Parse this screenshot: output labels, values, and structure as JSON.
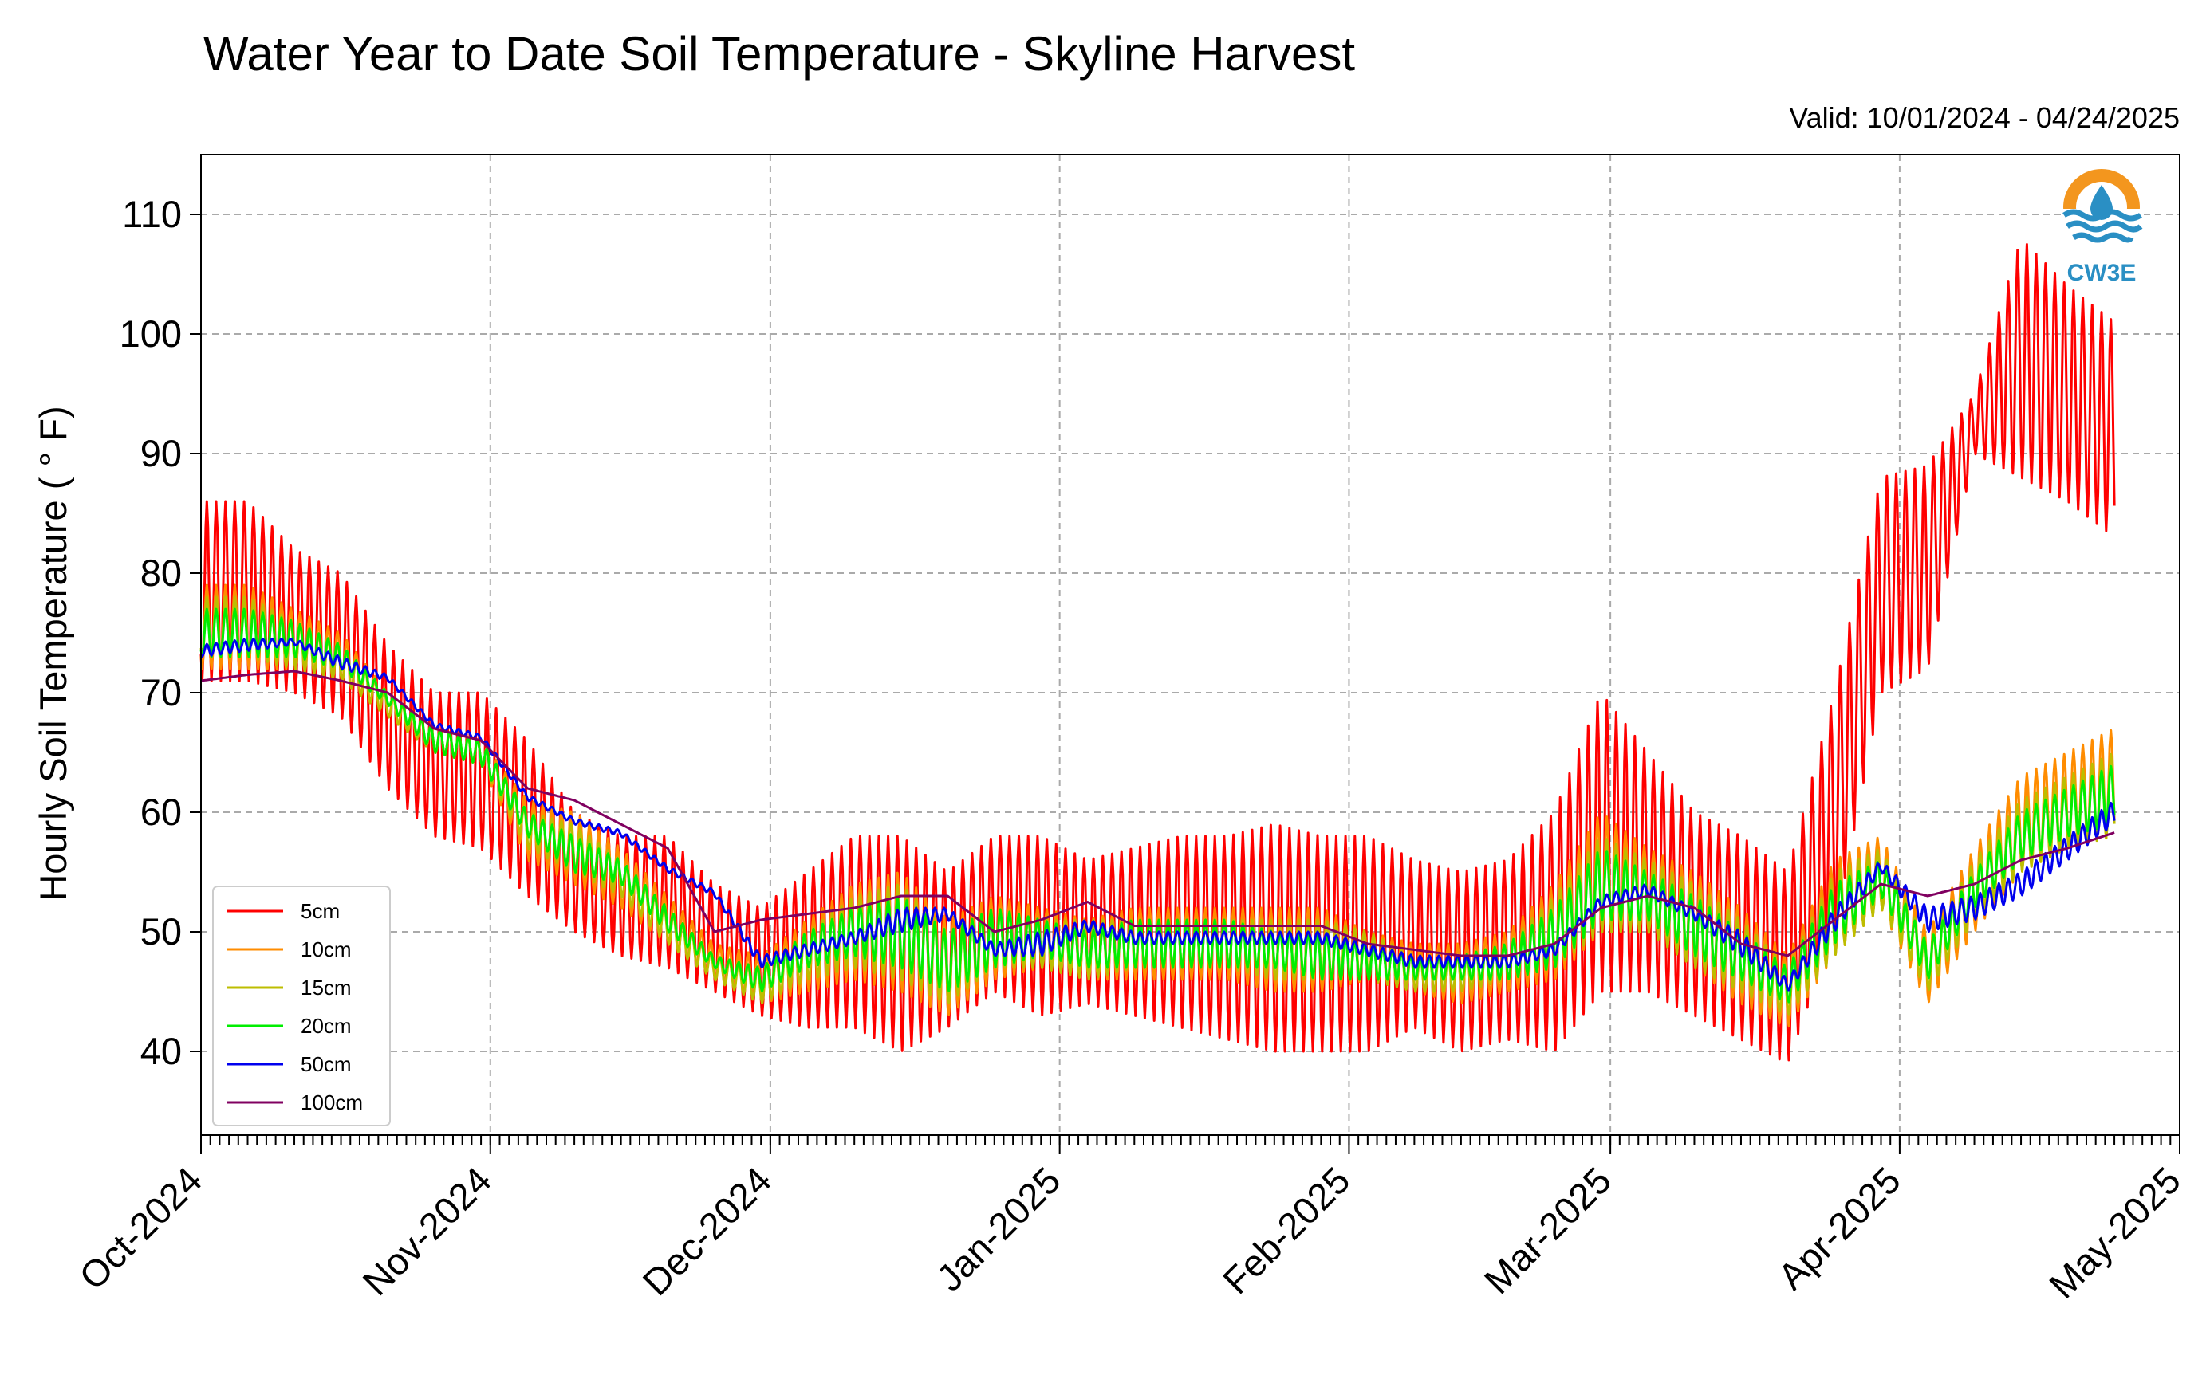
{
  "chart_data": {
    "type": "line",
    "title": "Water Year to Date Soil Temperature - Skyline Harvest",
    "subtitle": "Valid: 10/01/2024 - 04/24/2025",
    "xlabel": "",
    "ylabel": "Hourly Soil Temperature ( ° F)",
    "xlim": [
      "2024-10-01",
      "2025-05-01"
    ],
    "ylim": [
      33,
      115
    ],
    "x_ticks": [
      "Oct-2024",
      "Nov-2024",
      "Dec-2024",
      "Jan-2025",
      "Feb-2025",
      "Mar-2025",
      "Apr-2025",
      "May-2025"
    ],
    "x_tick_dates": [
      "2024-10-01",
      "2024-11-01",
      "2024-12-01",
      "2025-01-01",
      "2025-02-01",
      "2025-03-01",
      "2025-04-01",
      "2025-05-01"
    ],
    "y_ticks": [
      40,
      50,
      60,
      70,
      80,
      90,
      100,
      110
    ],
    "grid": true,
    "legend_position": "bottom-left",
    "logo_text": "CW3E",
    "series": [
      {
        "name": "5cm",
        "color": "#ff0000",
        "x": [
          "2024-10-01",
          "2024-10-06",
          "2024-10-11",
          "2024-10-16",
          "2024-10-21",
          "2024-10-26",
          "2024-10-31",
          "2024-11-05",
          "2024-11-10",
          "2024-11-15",
          "2024-11-20",
          "2024-11-25",
          "2024-11-30",
          "2024-12-05",
          "2024-12-10",
          "2024-12-15",
          "2024-12-20",
          "2024-12-25",
          "2024-12-30",
          "2025-01-04",
          "2025-01-09",
          "2025-01-14",
          "2025-01-19",
          "2025-01-24",
          "2025-01-29",
          "2025-02-03",
          "2025-02-08",
          "2025-02-13",
          "2025-02-18",
          "2025-02-23",
          "2025-02-28",
          "2025-03-05",
          "2025-03-10",
          "2025-03-15",
          "2025-03-20",
          "2025-03-25",
          "2025-03-30",
          "2025-04-04",
          "2025-04-09",
          "2025-04-14",
          "2025-04-19",
          "2025-04-24"
        ],
        "low": [
          71,
          71,
          70,
          68,
          62,
          58,
          57,
          53,
          50,
          48,
          47,
          45,
          43,
          42,
          42,
          40,
          42,
          45,
          43,
          44,
          43,
          42,
          41,
          40,
          40,
          40,
          42,
          40,
          41,
          40,
          45,
          45,
          43,
          41,
          39,
          50,
          70,
          72,
          90,
          88,
          86,
          83
        ],
        "high": [
          86,
          86,
          82,
          80,
          74,
          70,
          70,
          66,
          60,
          58,
          58,
          54,
          52,
          55,
          58,
          58,
          55,
          58,
          58,
          56,
          57,
          58,
          58,
          59,
          58,
          58,
          56,
          55,
          56,
          60,
          70,
          65,
          60,
          58,
          55,
          70,
          88,
          89,
          95,
          108,
          104,
          101
        ]
      },
      {
        "name": "10cm",
        "color": "#ff8c00",
        "x": [
          "2024-10-01",
          "2024-10-06",
          "2024-10-11",
          "2024-10-16",
          "2024-10-21",
          "2024-10-26",
          "2024-10-31",
          "2024-11-05",
          "2024-11-10",
          "2024-11-15",
          "2024-11-20",
          "2024-11-25",
          "2024-11-30",
          "2024-12-05",
          "2024-12-10",
          "2024-12-15",
          "2024-12-20",
          "2024-12-25",
          "2024-12-30",
          "2025-01-04",
          "2025-01-09",
          "2025-01-14",
          "2025-01-19",
          "2025-01-24",
          "2025-01-29",
          "2025-02-03",
          "2025-02-08",
          "2025-02-13",
          "2025-02-18",
          "2025-02-23",
          "2025-02-28",
          "2025-03-05",
          "2025-03-10",
          "2025-03-15",
          "2025-03-20",
          "2025-03-25",
          "2025-03-30",
          "2025-04-04",
          "2025-04-09",
          "2025-04-14",
          "2025-04-19",
          "2025-04-24"
        ],
        "low": [
          72,
          72,
          72,
          71,
          68,
          65,
          64,
          56,
          54,
          52,
          49,
          46,
          44,
          45,
          46,
          45,
          43,
          46,
          47,
          46,
          46,
          46,
          46,
          45,
          45,
          46,
          45,
          44,
          45,
          46,
          50,
          50,
          47,
          44,
          42,
          48,
          52,
          44,
          50,
          55,
          57,
          58
        ],
        "high": [
          79,
          79,
          77,
          75,
          70,
          67,
          66,
          61,
          60,
          57,
          53,
          49,
          48,
          51,
          54,
          55,
          51,
          53,
          52,
          51,
          52,
          52,
          52,
          52,
          52,
          50,
          49,
          49,
          50,
          54,
          60,
          57,
          55,
          52,
          48,
          56,
          58,
          50,
          57,
          63,
          65,
          67
        ]
      },
      {
        "name": "15cm",
        "color": "#bdbd00",
        "x": [
          "2024-10-01",
          "2024-10-06",
          "2024-10-11",
          "2024-10-16",
          "2024-10-21",
          "2024-10-26",
          "2024-10-31",
          "2024-11-05",
          "2024-11-10",
          "2024-11-15",
          "2024-11-20",
          "2024-11-25",
          "2024-11-30",
          "2024-12-05",
          "2024-12-10",
          "2024-12-15",
          "2024-12-20",
          "2024-12-25",
          "2024-12-30",
          "2025-01-04",
          "2025-01-09",
          "2025-01-14",
          "2025-01-19",
          "2025-01-24",
          "2025-01-29",
          "2025-02-03",
          "2025-02-08",
          "2025-02-13",
          "2025-02-18",
          "2025-02-23",
          "2025-02-28",
          "2025-03-05",
          "2025-03-10",
          "2025-03-15",
          "2025-03-20",
          "2025-03-25",
          "2025-03-30",
          "2025-04-04",
          "2025-04-09",
          "2025-04-14",
          "2025-04-19",
          "2025-04-24"
        ],
        "low": [
          73,
          73,
          72,
          71,
          68,
          65,
          64,
          57,
          55,
          53,
          49,
          46,
          44,
          46,
          47,
          46,
          44,
          47,
          47,
          46,
          47,
          47,
          47,
          46,
          46,
          46,
          45,
          45,
          46,
          47,
          50,
          50,
          47,
          45,
          43,
          48,
          52,
          45,
          51,
          55,
          57,
          58
        ],
        "high": [
          78,
          78,
          76,
          74,
          70,
          67,
          66,
          60,
          59,
          56,
          52,
          48,
          47,
          50,
          53,
          54,
          50,
          52,
          51,
          51,
          51,
          51,
          51,
          51,
          51,
          50,
          48,
          48,
          49,
          53,
          58,
          56,
          54,
          51,
          47,
          55,
          57,
          49,
          56,
          61,
          63,
          65
        ]
      },
      {
        "name": "20cm",
        "color": "#00ee00",
        "x": [
          "2024-10-01",
          "2024-10-06",
          "2024-10-11",
          "2024-10-16",
          "2024-10-21",
          "2024-10-26",
          "2024-10-31",
          "2024-11-05",
          "2024-11-10",
          "2024-11-15",
          "2024-11-20",
          "2024-11-25",
          "2024-11-30",
          "2024-12-05",
          "2024-12-10",
          "2024-12-15",
          "2024-12-20",
          "2024-12-25",
          "2024-12-30",
          "2025-01-04",
          "2025-01-09",
          "2025-01-14",
          "2025-01-19",
          "2025-01-24",
          "2025-01-29",
          "2025-02-03",
          "2025-02-08",
          "2025-02-13",
          "2025-02-18",
          "2025-02-23",
          "2025-02-28",
          "2025-03-05",
          "2025-03-10",
          "2025-03-15",
          "2025-03-20",
          "2025-03-25",
          "2025-03-30",
          "2025-04-04",
          "2025-04-09",
          "2025-04-14",
          "2025-04-19",
          "2025-04-24"
        ],
        "low": [
          73,
          73,
          73,
          72,
          69,
          65,
          64,
          58,
          55,
          54,
          50,
          47,
          45,
          47,
          48,
          47,
          45,
          47,
          48,
          47,
          47,
          47,
          47,
          47,
          46,
          46,
          46,
          46,
          46,
          47,
          51,
          51,
          48,
          46,
          44,
          49,
          53,
          46,
          52,
          56,
          58,
          59
        ],
        "high": [
          77,
          77,
          76,
          74,
          70,
          67,
          66,
          60,
          58,
          56,
          52,
          48,
          47,
          50,
          52,
          53,
          50,
          52,
          51,
          50,
          51,
          51,
          51,
          50,
          50,
          49,
          48,
          48,
          49,
          52,
          57,
          55,
          53,
          50,
          47,
          54,
          56,
          49,
          55,
          60,
          62,
          64
        ]
      },
      {
        "name": "50cm",
        "color": "#0000ee",
        "x": [
          "2024-10-01",
          "2024-10-06",
          "2024-10-11",
          "2024-10-16",
          "2024-10-21",
          "2024-10-26",
          "2024-10-31",
          "2024-11-05",
          "2024-11-10",
          "2024-11-15",
          "2024-11-20",
          "2024-11-25",
          "2024-11-30",
          "2024-12-05",
          "2024-12-10",
          "2024-12-15",
          "2024-12-20",
          "2024-12-25",
          "2024-12-30",
          "2025-01-04",
          "2025-01-09",
          "2025-01-14",
          "2025-01-19",
          "2025-01-24",
          "2025-01-29",
          "2025-02-03",
          "2025-02-08",
          "2025-02-13",
          "2025-02-18",
          "2025-02-23",
          "2025-02-28",
          "2025-03-05",
          "2025-03-10",
          "2025-03-15",
          "2025-03-20",
          "2025-03-25",
          "2025-03-30",
          "2025-04-04",
          "2025-04-09",
          "2025-04-14",
          "2025-04-19",
          "2025-04-24"
        ],
        "low": [
          73,
          73.5,
          74,
          72,
          71,
          67,
          66,
          61,
          59,
          58,
          55,
          53,
          47,
          48,
          49,
          50,
          51,
          48,
          48,
          50,
          49,
          49,
          49,
          49,
          49,
          48,
          47,
          47,
          47,
          48,
          52,
          53,
          51,
          48,
          45,
          50,
          55,
          50,
          51,
          53,
          56,
          59
        ],
        "high": [
          74,
          74.5,
          74.5,
          73,
          71.5,
          67.5,
          66.5,
          61.5,
          59.5,
          58.5,
          55.5,
          53.5,
          48,
          49,
          50,
          52,
          52,
          49,
          50,
          51,
          50,
          50,
          50,
          50,
          50,
          49,
          48,
          48,
          48,
          49,
          53,
          54,
          52,
          50,
          46,
          52,
          56,
          52,
          53,
          55,
          58,
          61
        ]
      },
      {
        "name": "100cm",
        "color": "#800060",
        "x": [
          "2024-10-01",
          "2024-10-06",
          "2024-10-11",
          "2024-10-16",
          "2024-10-21",
          "2024-10-26",
          "2024-10-31",
          "2024-11-05",
          "2024-11-10",
          "2024-11-15",
          "2024-11-20",
          "2024-11-25",
          "2024-11-30",
          "2024-12-05",
          "2024-12-10",
          "2024-12-15",
          "2024-12-20",
          "2024-12-25",
          "2024-12-30",
          "2025-01-04",
          "2025-01-09",
          "2025-01-14",
          "2025-01-19",
          "2025-01-24",
          "2025-01-29",
          "2025-02-03",
          "2025-02-08",
          "2025-02-13",
          "2025-02-18",
          "2025-02-23",
          "2025-02-28",
          "2025-03-05",
          "2025-03-10",
          "2025-03-15",
          "2025-03-20",
          "2025-03-25",
          "2025-03-30",
          "2025-04-04",
          "2025-04-09",
          "2025-04-14",
          "2025-04-19",
          "2025-04-24"
        ],
        "low": [
          71,
          71.5,
          71.8,
          71,
          70,
          67,
          66,
          62,
          61,
          59,
          57,
          50,
          51,
          51.5,
          52,
          53,
          53,
          50,
          51,
          52.5,
          50.5,
          50.5,
          50.5,
          50.5,
          50.5,
          49,
          48.5,
          48,
          48,
          49,
          52,
          53,
          52,
          49,
          48,
          51,
          54,
          53,
          54,
          56,
          57,
          58.3
        ],
        "high": [
          71,
          71.5,
          71.8,
          71,
          70,
          67,
          66,
          62,
          61,
          59,
          57,
          50,
          51,
          51.5,
          52,
          53,
          53,
          50,
          51,
          52.5,
          50.5,
          50.5,
          50.5,
          50.5,
          50.5,
          49,
          48.5,
          48,
          48,
          49,
          52,
          53,
          52,
          49,
          48,
          51,
          54,
          53,
          54,
          56,
          57,
          58.3
        ]
      }
    ]
  }
}
